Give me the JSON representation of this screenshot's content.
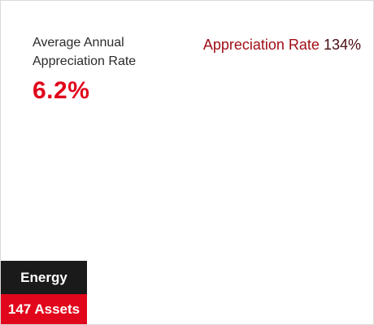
{
  "summary": {
    "label": "Average Annual\nAppreciation Rate",
    "value": "6.2%"
  },
  "appreciation": {
    "label": "Appreciation Rate",
    "value": "134%"
  },
  "tags": {
    "category": "Energy",
    "assets": "147 Assets"
  },
  "colors": {
    "accent_red": "#e1061b",
    "dark_red": "#a10e16",
    "tag_dark": "#1a1a1a"
  }
}
